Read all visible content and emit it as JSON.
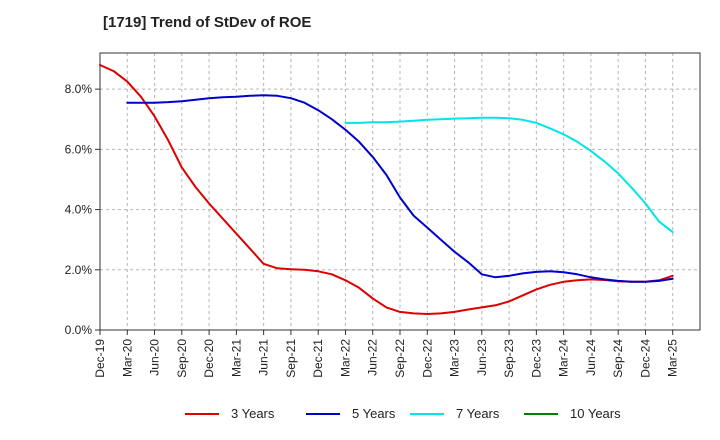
{
  "chart_data": {
    "type": "line",
    "title": "[1719]  Trend of StDev of ROE",
    "xlabel": "",
    "ylabel": "",
    "ylim": [
      0,
      9.2
    ],
    "yticks": [
      0,
      2,
      4,
      6,
      8
    ],
    "ytick_labels": [
      "0.0%",
      "2.0%",
      "4.0%",
      "6.0%",
      "8.0%"
    ],
    "xlim": [
      0,
      22
    ],
    "x_tick_labels": [
      "Dec-19",
      "Mar-20",
      "Jun-20",
      "Sep-20",
      "Dec-20",
      "Mar-21",
      "Jun-21",
      "Sep-21",
      "Dec-21",
      "Mar-22",
      "Jun-22",
      "Sep-22",
      "Dec-22",
      "Mar-23",
      "Jun-23",
      "Sep-23",
      "Dec-23",
      "Mar-24",
      "Jun-24",
      "Sep-24",
      "Dec-24",
      "Mar-25"
    ],
    "grid": true,
    "legend_position": "bottom",
    "series": [
      {
        "name": "3 Years",
        "color": "#dd0000",
        "x": [
          0,
          0.5,
          1,
          1.5,
          2,
          2.5,
          3,
          3.5,
          4,
          4.5,
          5,
          5.5,
          6,
          6.5,
          7,
          7.5,
          8,
          8.5,
          9,
          9.5,
          10,
          10.5,
          11,
          11.5,
          12,
          12.5,
          13,
          13.5,
          14,
          14.5,
          15,
          15.5,
          16,
          16.5,
          17,
          17.5,
          18,
          18.5,
          19,
          19.5,
          20,
          20.5,
          21
        ],
        "values": [
          8.8,
          8.6,
          8.25,
          7.75,
          7.1,
          6.3,
          5.4,
          4.75,
          4.2,
          3.7,
          3.2,
          2.7,
          2.2,
          2.05,
          2.02,
          2.0,
          1.95,
          1.85,
          1.65,
          1.4,
          1.05,
          0.75,
          0.6,
          0.55,
          0.53,
          0.55,
          0.6,
          0.68,
          0.75,
          0.82,
          0.95,
          1.15,
          1.35,
          1.5,
          1.6,
          1.65,
          1.68,
          1.66,
          1.62,
          1.6,
          1.6,
          1.65,
          1.8
        ]
      },
      {
        "name": "5 Years",
        "color": "#0000cc",
        "x": [
          1,
          1.5,
          2,
          2.5,
          3,
          3.5,
          4,
          4.5,
          5,
          5.5,
          6,
          6.5,
          7,
          7.5,
          8,
          8.5,
          9,
          9.5,
          10,
          10.5,
          11,
          11.5,
          12,
          12.5,
          13,
          13.5,
          14,
          14.5,
          15,
          15.5,
          16,
          16.5,
          17,
          17.5,
          18,
          18.5,
          19,
          19.5,
          20,
          20.5,
          21
        ],
        "values": [
          7.55,
          7.55,
          7.55,
          7.57,
          7.6,
          7.65,
          7.7,
          7.73,
          7.75,
          7.78,
          7.8,
          7.78,
          7.7,
          7.55,
          7.3,
          7.0,
          6.65,
          6.25,
          5.75,
          5.15,
          4.4,
          3.8,
          3.4,
          3.0,
          2.6,
          2.25,
          1.85,
          1.75,
          1.8,
          1.88,
          1.93,
          1.95,
          1.92,
          1.85,
          1.75,
          1.68,
          1.63,
          1.6,
          1.6,
          1.63,
          1.7
        ]
      },
      {
        "name": "7 Years",
        "color": "#00e5e5",
        "x": [
          9,
          9.5,
          10,
          10.5,
          11,
          11.5,
          12,
          12.5,
          13,
          13.5,
          14,
          14.5,
          15,
          15.5,
          16,
          16.5,
          17,
          17.5,
          18,
          18.5,
          19,
          19.5,
          20,
          20.5,
          21
        ],
        "values": [
          6.88,
          6.88,
          6.9,
          6.9,
          6.92,
          6.95,
          6.98,
          7.0,
          7.02,
          7.03,
          7.05,
          7.05,
          7.03,
          6.98,
          6.88,
          6.7,
          6.5,
          6.25,
          5.95,
          5.6,
          5.2,
          4.72,
          4.2,
          3.6,
          3.25
        ]
      },
      {
        "name": "10 Years",
        "color": "#008000",
        "x": [],
        "values": []
      }
    ]
  }
}
